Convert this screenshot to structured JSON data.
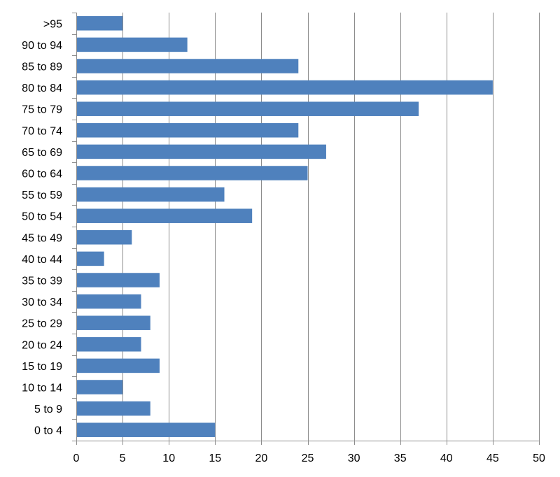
{
  "chart_data": {
    "type": "bar",
    "orientation": "horizontal",
    "title": "",
    "xlabel": "",
    "ylabel": "",
    "categories": [
      "0 to 4",
      "5 to 9",
      "10 to 14",
      "15 to 19",
      "20 to 24",
      "25 to 29",
      "30 to 34",
      "35 to 39",
      "40 to 44",
      "45 to 49",
      "50 to 54",
      "55 to 59",
      "60 to 64",
      "65 to 69",
      "70 to 74",
      "75 to 79",
      "80 to 84",
      "85 to 89",
      "90 to 94",
      ">95"
    ],
    "values": [
      15,
      8,
      5,
      9,
      7,
      8,
      7,
      9,
      3,
      6,
      19,
      16,
      25,
      27,
      24,
      37,
      45,
      24,
      12,
      5
    ],
    "xlim": [
      0,
      50
    ],
    "xticks": [
      0,
      5,
      10,
      15,
      20,
      25,
      30,
      35,
      40,
      45,
      50
    ],
    "grid": "vertical",
    "legend": "none",
    "bar_color": "#4f81bd"
  }
}
